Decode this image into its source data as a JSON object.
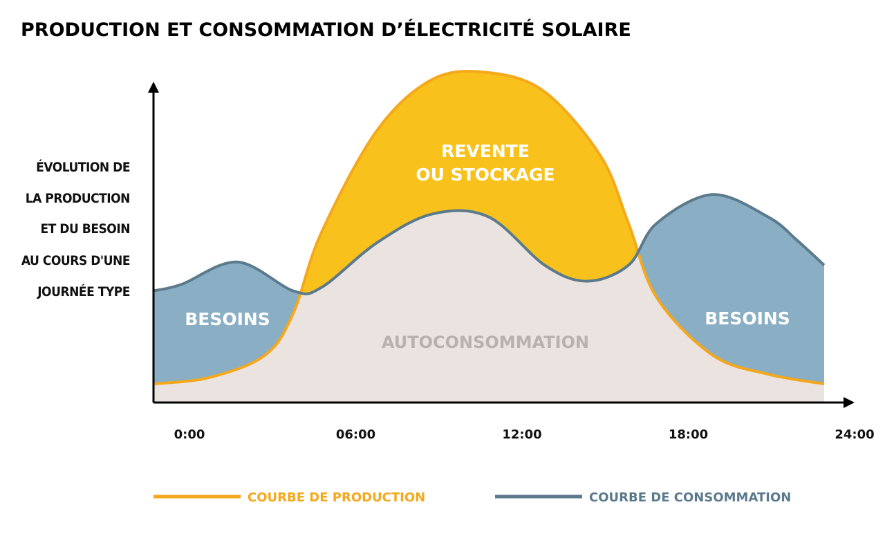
{
  "chart_data": {
    "type": "area",
    "title": "PRODUCTION ET CONSOMMATION D’ÉLECTRICITÉ SOLAIRE",
    "ylabel_lines": [
      "ÉVOLUTION DE",
      "LA PRODUCTION",
      "ET DU BESOIN",
      "AU COURS D'UNE",
      "JOURNÉE TYPE"
    ],
    "x_ticks": [
      "0:00",
      "06:00",
      "12:00",
      "18:00",
      "24:00"
    ],
    "xlim": [
      0,
      24
    ],
    "ylim": [
      0,
      100
    ],
    "grid": false,
    "legend_position": "bottom",
    "series": [
      {
        "name": "COURBE DE PRODUCTION",
        "color": "#F5A81C",
        "fill": "#F9C11C",
        "x": [
          0,
          2,
          4,
          5,
          6,
          8,
          10,
          12,
          14,
          16,
          17,
          18,
          20,
          22,
          24
        ],
        "y": [
          3,
          5,
          12,
          25,
          50,
          82,
          98,
          100,
          94,
          74,
          53,
          30,
          12,
          6,
          3
        ]
      },
      {
        "name": "COURBE DE CONSOMMATION",
        "color": "#5B7A8C",
        "fill": "#8AAEC3",
        "x": [
          0,
          1,
          3,
          5,
          6,
          8,
          10,
          12,
          14,
          15.5,
          17,
          18,
          20,
          22,
          23,
          24
        ],
        "y": [
          32,
          34,
          41,
          32,
          33,
          47,
          56,
          55,
          40,
          35,
          40,
          53,
          62,
          55,
          48,
          40
        ]
      }
    ],
    "annotations": {
      "besoins_left": "BESOINS",
      "besoins_right": "BESOINS",
      "surplus_line1": "REVENTE",
      "surplus_line2": "OU STOCKAGE",
      "autoconsommation": "AUTOCONSOMMATION"
    }
  }
}
